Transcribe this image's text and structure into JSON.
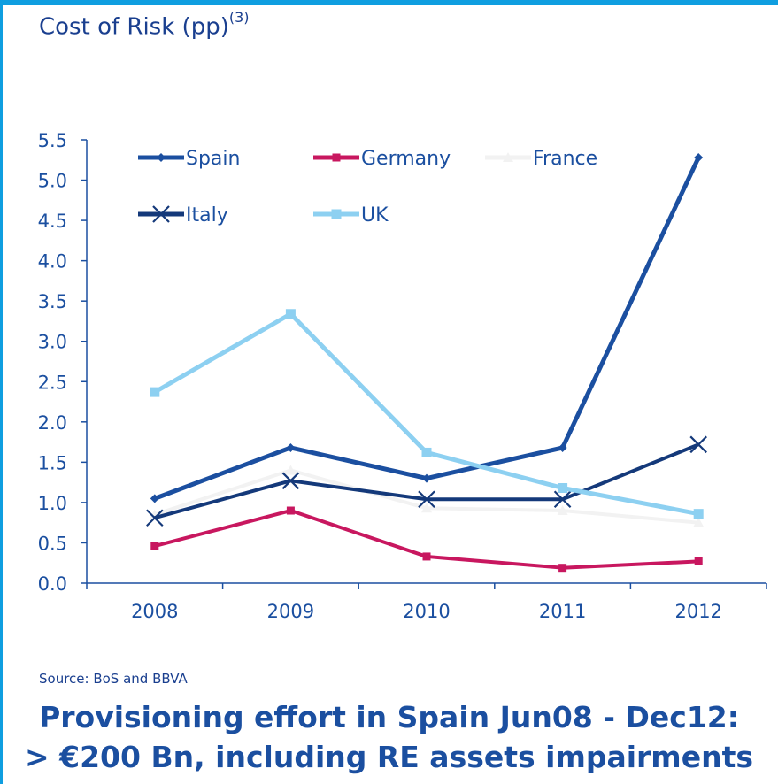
{
  "chart_data": {
    "type": "line",
    "title": "Cost of Risk (pp)",
    "title_sup": "(3)",
    "categories": [
      "2008",
      "2009",
      "2010",
      "2011",
      "2012"
    ],
    "ylim": [
      0,
      5.5
    ],
    "yticks": [
      "0.0",
      "0.5",
      "1.0",
      "1.5",
      "2.0",
      "2.5",
      "3.0",
      "3.5",
      "4.0",
      "4.5",
      "5.0",
      "5.5"
    ],
    "grid": false,
    "legend_position": "top",
    "series": [
      {
        "name": "Spain",
        "values": [
          1.05,
          1.68,
          1.3,
          1.68,
          5.28
        ],
        "color": "#1b4fa0",
        "marker": "diamond"
      },
      {
        "name": "Germany",
        "values": [
          0.46,
          0.9,
          0.33,
          0.19,
          0.27
        ],
        "color": "#c8175f",
        "marker": "square"
      },
      {
        "name": "France",
        "values": [
          0.85,
          1.4,
          0.93,
          0.9,
          0.75
        ],
        "color": "#f2f2f2",
        "marker": "triangle"
      },
      {
        "name": "Italy",
        "values": [
          0.81,
          1.27,
          1.04,
          1.04,
          1.72
        ],
        "color": "#14397a",
        "marker": "x"
      },
      {
        "name": "UK",
        "values": [
          2.37,
          3.34,
          1.62,
          1.18,
          0.86
        ],
        "color": "#8dd0f1",
        "marker": "square"
      }
    ]
  },
  "source": "Source: BoS and BBVA",
  "headline": {
    "line1": "Provisioning effort in Spain Jun08 - Dec12:",
    "line2": "> €200 Bn, including RE assets impairments"
  }
}
